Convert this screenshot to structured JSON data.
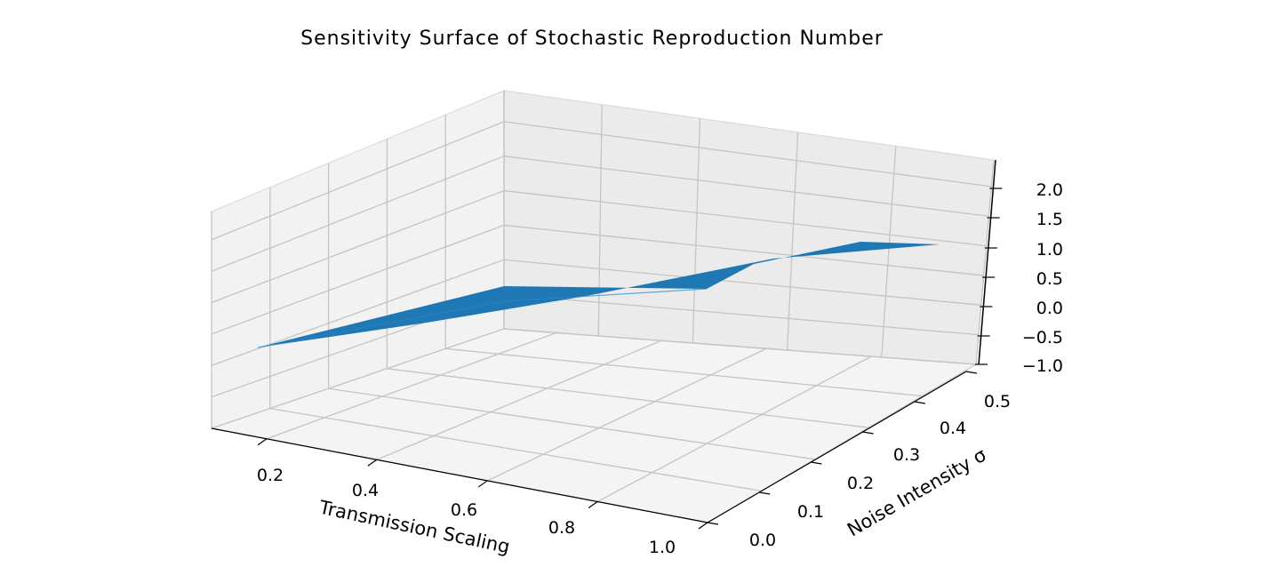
{
  "chart_data": {
    "type": "surface",
    "title": "Sensitivity Surface of Stochastic Reproduction Number",
    "xlabel": "Transmission Scaling",
    "ylabel": "Noise Intensity σ",
    "zlabel": "",
    "x_ticks": [
      "0.2",
      "0.4",
      "0.6",
      "0.8",
      "1.0"
    ],
    "y_ticks": [
      "0.0",
      "0.1",
      "0.2",
      "0.3",
      "0.4",
      "0.5"
    ],
    "z_ticks": [
      "−1.0",
      "−0.5",
      "0.0",
      "0.5",
      "1.0",
      "1.5",
      "2.0"
    ],
    "xlim": [
      0.1,
      1.0
    ],
    "ylim": [
      0.0,
      0.5
    ],
    "zlim": [
      -1.0,
      2.2
    ],
    "grid": true,
    "surface_color": "#1f77b4",
    "surface_corners": [
      {
        "x": 0.1,
        "y": 0.0,
        "z": 0.1
      },
      {
        "x": 1.0,
        "y": 0.0,
        "z": 0.9
      },
      {
        "x": 0.1,
        "y": 0.5,
        "z": 0.1
      },
      {
        "x": 1.0,
        "y": 0.5,
        "z": 0.85
      }
    ]
  }
}
